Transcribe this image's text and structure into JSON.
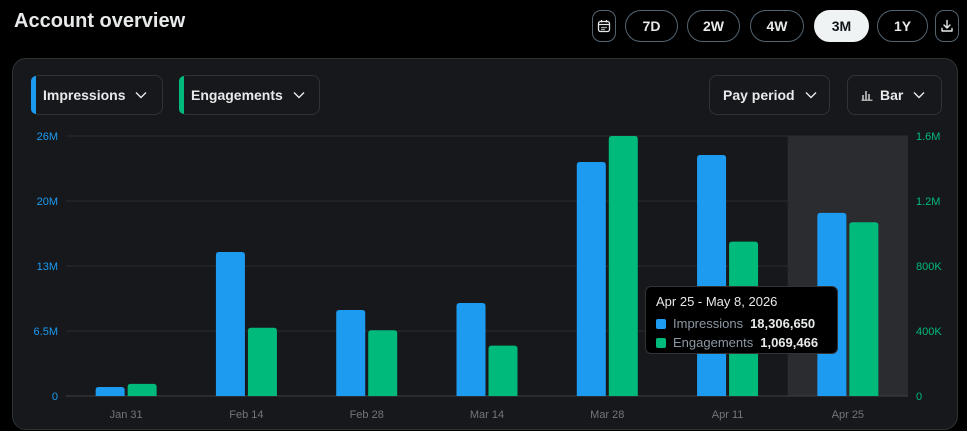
{
  "header": {
    "title": "Account overview"
  },
  "range_selector": {
    "options": [
      "7D",
      "2W",
      "4W",
      "3M",
      "1Y"
    ],
    "selected": "3M",
    "calendar_icon": "calendar-icon",
    "download_icon": "download-icon"
  },
  "controls": {
    "metric_1": {
      "label": "Impressions",
      "color": "#1d9bf0"
    },
    "metric_2": {
      "label": "Engagements",
      "color": "#00ba7c"
    },
    "period": "Pay period",
    "chart_style": "Bar"
  },
  "tooltip": {
    "title": "Apr 25 - May 8, 2026",
    "rows": [
      {
        "name": "Impressions",
        "value": "18,306,650",
        "color": "#1d9bf0"
      },
      {
        "name": "Engagements",
        "value": "1,069,466",
        "color": "#00ba7c"
      }
    ]
  },
  "chart_data": {
    "type": "bar",
    "categories": [
      "Jan 31",
      "Feb 14",
      "Feb 28",
      "Mar 14",
      "Mar 28",
      "Apr 11",
      "Apr 25"
    ],
    "highlighted_category": "Apr 25",
    "series": [
      {
        "name": "Impressions",
        "axis": "left",
        "color": "#1d9bf0",
        "values": [
          900000,
          14400000,
          8600000,
          9300000,
          23400000,
          24100000,
          18306650
        ]
      },
      {
        "name": "Engagements",
        "axis": "right",
        "color": "#00ba7c",
        "values": [
          75000,
          420000,
          405000,
          310000,
          1600000,
          950000,
          1069466
        ]
      }
    ],
    "left_axis": {
      "ticks": [
        "0",
        "6.5M",
        "13M",
        "20M",
        "26M"
      ],
      "ylim": [
        0,
        26000000
      ]
    },
    "right_axis": {
      "ticks": [
        "0",
        "400K",
        "800K",
        "1.2M",
        "1.6M"
      ],
      "ylim": [
        0,
        1600000
      ]
    },
    "grid": true
  }
}
